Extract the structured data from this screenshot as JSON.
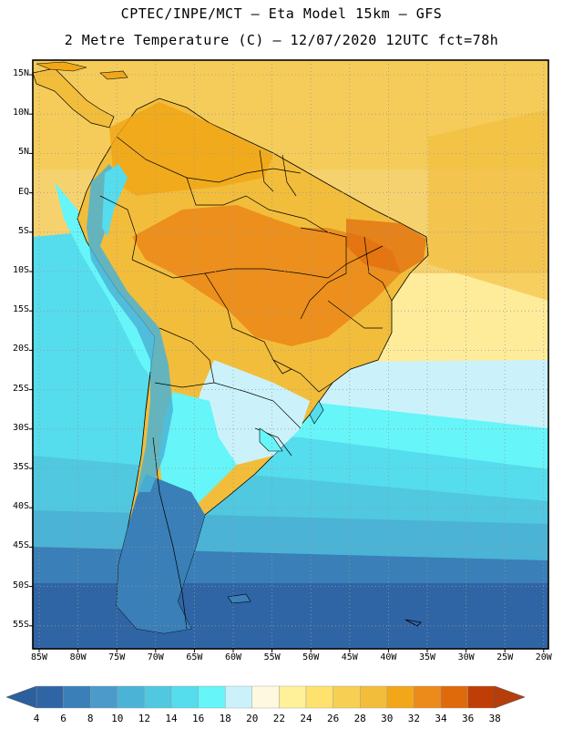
{
  "title": {
    "line1": "CPTEC/INPE/MCT –  Eta Model 15km – GFS",
    "line2": "2 Metre Temperature (C) – 12/07/2020 12UTC fct=78h"
  },
  "latitude_labels": [
    "15N",
    "10N",
    "5N",
    "EQ",
    "5S",
    "10S",
    "15S",
    "20S",
    "25S",
    "30S",
    "35S",
    "40S",
    "45S",
    "50S",
    "55S"
  ],
  "longitude_labels": [
    "85W",
    "80W",
    "75W",
    "70W",
    "65W",
    "60W",
    "55W",
    "50W",
    "45W",
    "40W",
    "35W",
    "30W",
    "25W",
    "20W"
  ],
  "colorbar": {
    "labels": [
      "4",
      "6",
      "8",
      "10",
      "12",
      "14",
      "16",
      "18",
      "20",
      "22",
      "24",
      "26",
      "28",
      "30",
      "32",
      "34",
      "36",
      "38"
    ],
    "colors": [
      "#2f65a5",
      "#3a7fb7",
      "#4b9ac9",
      "#4bb3d6",
      "#4fc8e0",
      "#55dced",
      "#66f5f8",
      "#cbf2fb",
      "#fff8e0",
      "#fff09a",
      "#ffe26e",
      "#f7d053",
      "#f2bd3b",
      "#f1a717",
      "#ec8a1a",
      "#df6a0b",
      "#bf3e06"
    ],
    "low_arrow_color": "#2c5f9e",
    "high_arrow_color": "#b43f0c"
  },
  "map": {
    "lon_range": [
      -86,
      -19
    ],
    "lat_range": [
      18,
      -59
    ],
    "ocean_colors": {
      "north_tropical": "#f5ca55",
      "north_far": "#f8d672",
      "subtropical": "#ffec9a",
      "light_band": "#cbf2fb",
      "cyan": "#66f5f8",
      "cyan2": "#55dced",
      "midlat": "#4fc8e0",
      "mid2": "#4bb3d6",
      "deep": "#3a7fb7",
      "deepest": "#2f65a5"
    },
    "land_colors": {
      "amazon_hot": "#ec8a1a",
      "land_warm": "#f1a717",
      "land_mild": "#f2bd3b",
      "south_cool": "#66f5f8",
      "patagonia": "#3a7fb7",
      "andes": "#4bb3d6"
    }
  }
}
